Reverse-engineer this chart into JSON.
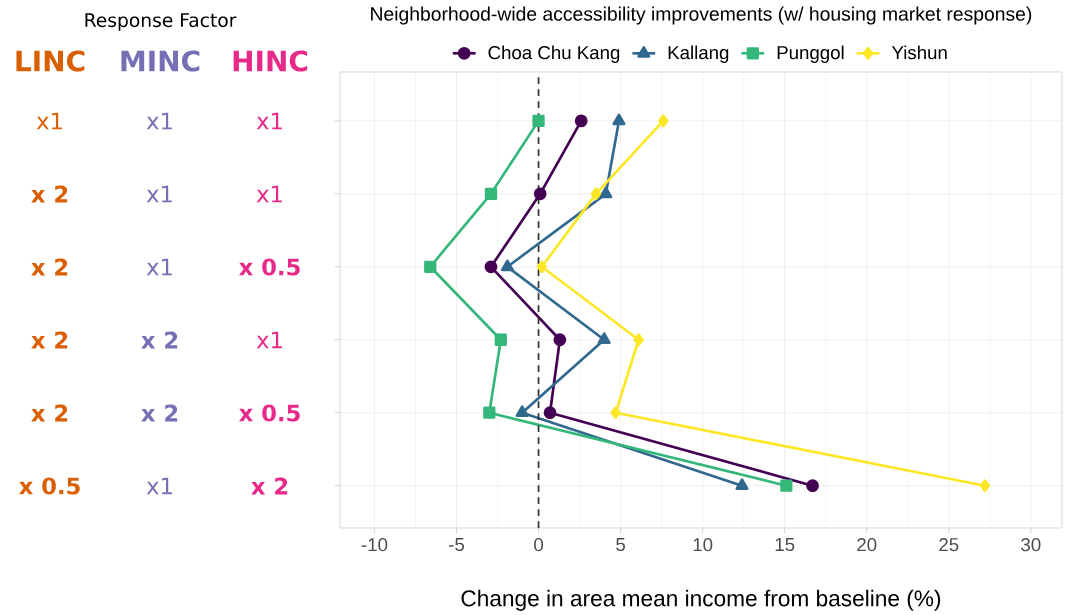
{
  "chart_data": {
    "type": "line",
    "orientation": "horizontal",
    "title": "Neighborhood-wide accessibility improvements (w/ housing market response)",
    "xlabel": "Change in area mean income from baseline (%)",
    "categories": [
      null,
      null,
      null,
      null,
      null,
      null
    ],
    "series": [
      {
        "name": "Choa Chu Kang",
        "color": "#440154",
        "marker": "circle",
        "values": [
          2.6,
          0.1,
          -2.9,
          1.3,
          0.7,
          16.7
        ]
      },
      {
        "name": "Kallang",
        "color": "#31688e",
        "marker": "triangle",
        "values": [
          4.9,
          4.1,
          -1.9,
          4.0,
          -1.0,
          12.4
        ]
      },
      {
        "name": "Punggol",
        "color": "#35b779",
        "marker": "square",
        "values": [
          0.0,
          -2.9,
          -6.6,
          -2.3,
          -3.0,
          15.1
        ]
      },
      {
        "name": "Yishun",
        "color": "#fde725",
        "marker": "diamond",
        "values": [
          7.6,
          3.5,
          0.2,
          6.1,
          4.7,
          27.2
        ]
      }
    ],
    "xlim": [
      -12.1,
      31.9
    ],
    "xticks": [
      -10,
      -5,
      0,
      5,
      10,
      15,
      20,
      25,
      30
    ],
    "grid": true,
    "legend": "top",
    "line_style": "solid",
    "ref_lines": [
      {
        "axis": "x",
        "value": 0,
        "line_style": "dashed",
        "color": "#333333"
      }
    ],
    "annotations": [
      "Response Factor",
      "LINC",
      "MINC",
      "HINC",
      "x1",
      "x1",
      "x1",
      "x 2",
      "x1",
      "x1",
      "x 2",
      "x1",
      "x 0.5",
      "x 2",
      "x 2",
      "x1",
      "x 2",
      "x 2",
      "x 0.5",
      "x 0.5",
      "x1",
      "x 2"
    ]
  }
}
